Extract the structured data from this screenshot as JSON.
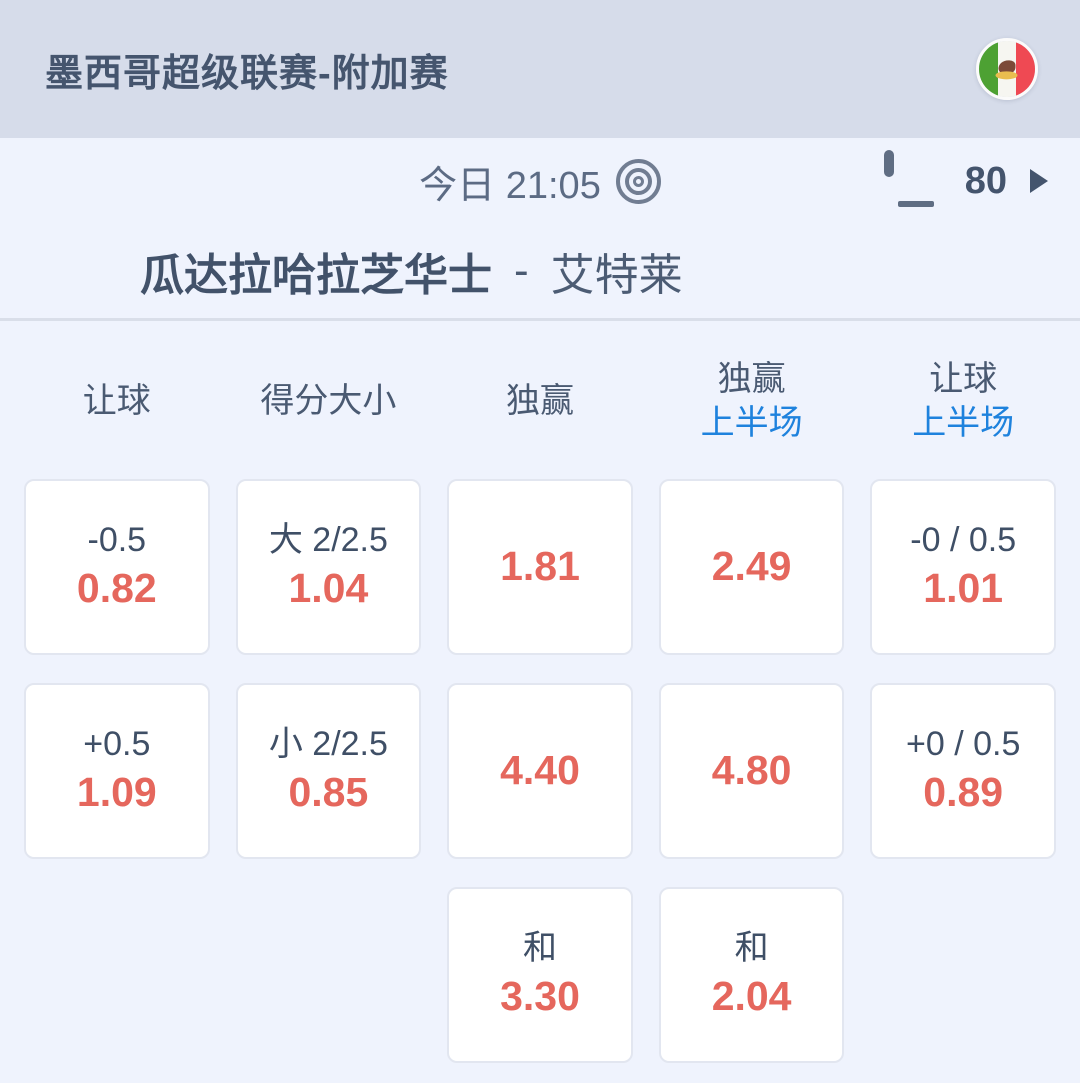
{
  "header": {
    "title": "墨西哥超级联赛-附加赛",
    "flag_icon": "mexico-flag-icon"
  },
  "info_bar": {
    "time_label": "今日 21:05",
    "time_icon": "target-icon",
    "stream_icon": "tv-icon",
    "stream_count": "80",
    "chevron_icon": "chevron-right-icon"
  },
  "match": {
    "home_team": "瓜达拉哈拉芝华士",
    "separator": "-",
    "away_team": "艾特莱"
  },
  "markets": {
    "columns": [
      {
        "label": "让球",
        "sub": ""
      },
      {
        "label": "得分大小",
        "sub": ""
      },
      {
        "label": "独赢",
        "sub": ""
      },
      {
        "label": "独赢",
        "sub": "上半场"
      },
      {
        "label": "让球",
        "sub": "上半场"
      }
    ],
    "rows": [
      [
        {
          "line": "-0.5",
          "odds": "0.82"
        },
        {
          "line": "大 2/2.5",
          "odds": "1.04"
        },
        {
          "odds": "1.81"
        },
        {
          "odds": "2.49"
        },
        {
          "line": "-0 / 0.5",
          "odds": "1.01"
        }
      ],
      [
        {
          "line": "+0.5",
          "odds": "1.09"
        },
        {
          "line": "小 2/2.5",
          "odds": "0.85"
        },
        {
          "odds": "4.40"
        },
        {
          "odds": "4.80"
        },
        {
          "line": "+0 / 0.5",
          "odds": "0.89"
        }
      ],
      [
        {
          "line": "和",
          "odds": "3.30"
        },
        {
          "line": "和",
          "odds": "2.04"
        }
      ]
    ]
  },
  "colors": {
    "title_bar_bg": "#d6dcea",
    "page_bg": "#eff3fd",
    "accent_blue": "#1e82dd",
    "odds_red": "#e5675d",
    "dark_slate": "#3f4f66",
    "flag_green": "#4da133",
    "flag_red": "#ef4953"
  }
}
